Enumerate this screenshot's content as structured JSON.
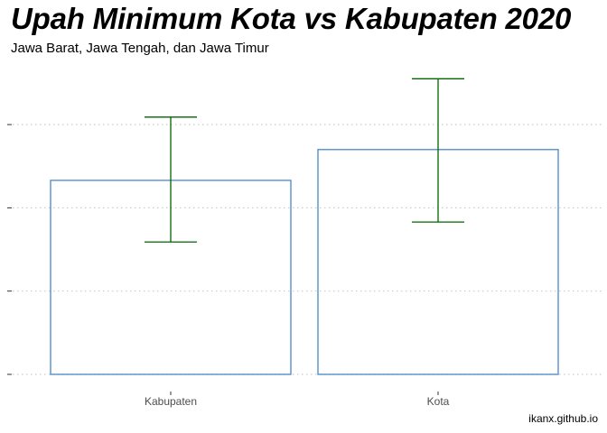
{
  "title": "Upah Minimum Kota vs Kabupaten 2020",
  "subtitle": "Jawa Barat, Jawa Tengah, dan Jawa Timur",
  "caption": "ikanx.github.io",
  "colors": {
    "bar_outline": "#4a86c8",
    "errorbar": "#006400",
    "grid": "#cccccc"
  },
  "chart_data": {
    "type": "bar",
    "categories": [
      "Kabupaten",
      "Kota"
    ],
    "values": [
      2.33,
      2.7
    ],
    "error_low": [
      1.59,
      1.83
    ],
    "error_high": [
      3.09,
      3.55
    ],
    "ylim": [
      0,
      3.55
    ],
    "y_ticks": [
      0,
      1,
      2,
      3
    ],
    "y_tick_labels_shown": false,
    "grid": "horizontal dotted",
    "xlabel": "",
    "ylabel": ""
  }
}
